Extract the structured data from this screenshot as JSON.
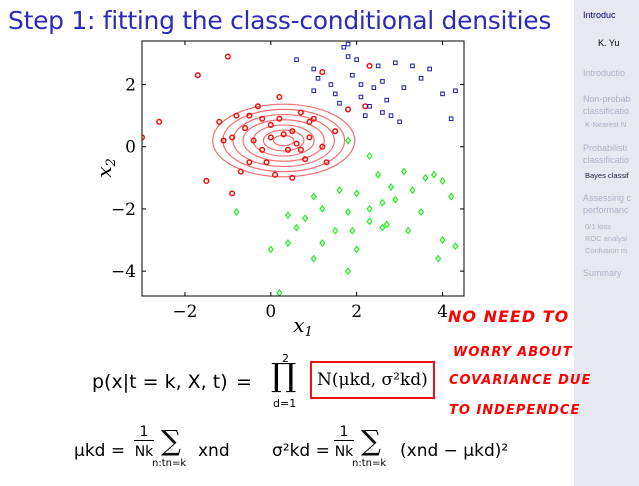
{
  "slide": {
    "title": "Step 1: fitting the class-conditional densities"
  },
  "sidebar": {
    "header": "Introduc",
    "author": "K. Yu",
    "items": [
      {
        "label": "Introductio",
        "kind": "section"
      },
      {
        "label": "Non-probab",
        "kind": "section"
      },
      {
        "label": "classificatio",
        "kind": "section"
      },
      {
        "label": "K-Nearest N",
        "kind": "sub"
      },
      {
        "label": "Probabilisti",
        "kind": "section"
      },
      {
        "label": "classificatio",
        "kind": "section"
      },
      {
        "label": "Bayes classif",
        "kind": "current"
      },
      {
        "label": "Assessing c",
        "kind": "section"
      },
      {
        "label": "performanc",
        "kind": "section"
      },
      {
        "label": "0/1 loss",
        "kind": "sub"
      },
      {
        "label": "ROC analysi",
        "kind": "sub"
      },
      {
        "label": "Confusion m",
        "kind": "sub"
      },
      {
        "label": "Summary",
        "kind": "section"
      }
    ]
  },
  "chart_data": {
    "type": "scatter",
    "xlabel": "x1",
    "ylabel": "x2",
    "xlim": [
      -3,
      4.5
    ],
    "ylim": [
      -4.8,
      3.4
    ],
    "xticks": [
      -2,
      0,
      2,
      4
    ],
    "yticks": [
      2,
      0,
      -2,
      -4
    ],
    "colors": {
      "red": "#ee1111",
      "blue": "#1a1aa8",
      "green": "#22ee22",
      "ellipse": "#f07070"
    },
    "contours": {
      "center": [
        0.3,
        0.2
      ],
      "sigma_x": 1.6,
      "sigma_y": 1.13,
      "count": 7
    },
    "series": [
      {
        "marker": "circle",
        "color": "red",
        "points": [
          [
            -3.0,
            0.3
          ],
          [
            -2.6,
            0.8
          ],
          [
            -1.7,
            2.3
          ],
          [
            -1.0,
            2.9
          ],
          [
            -0.5,
            -0.5
          ],
          [
            -0.8,
            1.0
          ],
          [
            -0.6,
            0.6
          ],
          [
            -0.4,
            0.2
          ],
          [
            -0.2,
            -0.1
          ],
          [
            0.0,
            0.3
          ],
          [
            0.0,
            0.7
          ],
          [
            0.2,
            0.9
          ],
          [
            0.3,
            0.4
          ],
          [
            0.4,
            -0.1
          ],
          [
            0.5,
            0.5
          ],
          [
            0.6,
            0.1
          ],
          [
            0.7,
            1.1
          ],
          [
            0.8,
            -0.4
          ],
          [
            0.9,
            0.3
          ],
          [
            1.0,
            0.9
          ],
          [
            1.2,
            0.0
          ],
          [
            1.3,
            -0.5
          ],
          [
            1.5,
            0.5
          ],
          [
            1.8,
            1.2
          ],
          [
            2.2,
            1.3
          ],
          [
            2.3,
            2.6
          ],
          [
            0.2,
            1.6
          ],
          [
            -0.3,
            1.3
          ],
          [
            -1.1,
            0.2
          ],
          [
            -1.5,
            -1.1
          ],
          [
            -0.9,
            -1.5
          ],
          [
            0.1,
            -0.9
          ],
          [
            0.5,
            -1.0
          ],
          [
            -0.1,
            -0.5
          ],
          [
            -0.7,
            -0.8
          ],
          [
            1.2,
            2.4
          ],
          [
            -1.2,
            0.8
          ],
          [
            -0.5,
            1.0
          ],
          [
            0.7,
            -0.1
          ],
          [
            0.9,
            0.8
          ],
          [
            -0.2,
            0.9
          ],
          [
            -0.9,
            0.3
          ]
        ]
      },
      {
        "marker": "square",
        "color": "blue",
        "points": [
          [
            1.0,
            2.5
          ],
          [
            1.1,
            2.2
          ],
          [
            1.4,
            2.0
          ],
          [
            1.5,
            1.7
          ],
          [
            1.6,
            1.4
          ],
          [
            1.8,
            2.9
          ],
          [
            1.9,
            2.3
          ],
          [
            2.1,
            2.0
          ],
          [
            2.1,
            1.6
          ],
          [
            2.3,
            1.3
          ],
          [
            2.4,
            1.9
          ],
          [
            2.6,
            2.1
          ],
          [
            2.7,
            1.5
          ],
          [
            2.8,
            1.0
          ],
          [
            3.0,
            0.8
          ],
          [
            3.1,
            1.9
          ],
          [
            3.3,
            2.6
          ],
          [
            3.5,
            2.2
          ],
          [
            3.7,
            2.5
          ],
          [
            4.0,
            1.7
          ],
          [
            4.2,
            0.9
          ],
          [
            1.7,
            3.2
          ],
          [
            2.0,
            2.8
          ],
          [
            2.9,
            2.7
          ],
          [
            0.6,
            2.8
          ],
          [
            1.0,
            1.8
          ],
          [
            4.3,
            1.8
          ],
          [
            2.2,
            1.0
          ],
          [
            2.5,
            2.6
          ],
          [
            2.6,
            1.1
          ],
          [
            1.8,
            3.3
          ]
        ]
      },
      {
        "marker": "diamond",
        "color": "green",
        "points": [
          [
            1.8,
            0.2
          ],
          [
            2.3,
            -0.3
          ],
          [
            2.5,
            -0.9
          ],
          [
            2.8,
            -1.3
          ],
          [
            3.1,
            -0.8
          ],
          [
            3.3,
            -1.4
          ],
          [
            3.6,
            -1.0
          ],
          [
            3.8,
            -0.9
          ],
          [
            4.0,
            -1.1
          ],
          [
            4.2,
            -1.6
          ],
          [
            2.6,
            -1.8
          ],
          [
            2.3,
            -2.0
          ],
          [
            2.0,
            -1.5
          ],
          [
            1.8,
            -2.1
          ],
          [
            1.6,
            -1.4
          ],
          [
            1.5,
            -2.7
          ],
          [
            1.2,
            -2.0
          ],
          [
            1.0,
            -1.6
          ],
          [
            0.8,
            -2.3
          ],
          [
            0.6,
            -2.6
          ],
          [
            0.4,
            -3.1
          ],
          [
            -0.8,
            -2.1
          ],
          [
            0.4,
            -2.2
          ],
          [
            0.0,
            -3.3
          ],
          [
            1.2,
            -3.1
          ],
          [
            1.0,
            -3.6
          ],
          [
            2.0,
            -3.3
          ],
          [
            2.3,
            -2.4
          ],
          [
            2.7,
            -2.5
          ],
          [
            3.2,
            -2.7
          ],
          [
            4.0,
            -3.0
          ],
          [
            4.3,
            -3.2
          ],
          [
            3.9,
            -3.6
          ],
          [
            1.8,
            -4.0
          ],
          [
            0.2,
            -4.7
          ],
          [
            2.9,
            -1.7
          ],
          [
            3.5,
            -2.1
          ],
          [
            2.6,
            -2.6
          ],
          [
            1.9,
            -2.7
          ]
        ]
      }
    ]
  },
  "equations": {
    "line1_lhs": "p(x|t = k, X, t)",
    "equals": "=",
    "prod_upper": "2",
    "prod_lower": "d=1",
    "boxed_term": "N(μkd, σ²kd)",
    "mu_lhs": "μkd =",
    "sigma_lhs": "σ²kd =",
    "frac_num": "1",
    "frac_den": "Nk",
    "sum_sub": "n:tn=k",
    "mu_term": "xnd",
    "sigma_term": "(xnd − μkd)²"
  },
  "annotation": {
    "lines": [
      "NO NEED TO",
      "WORRY ABOUT",
      "COVARIANCE DUE",
      "TO INDEPENDCE"
    ]
  }
}
